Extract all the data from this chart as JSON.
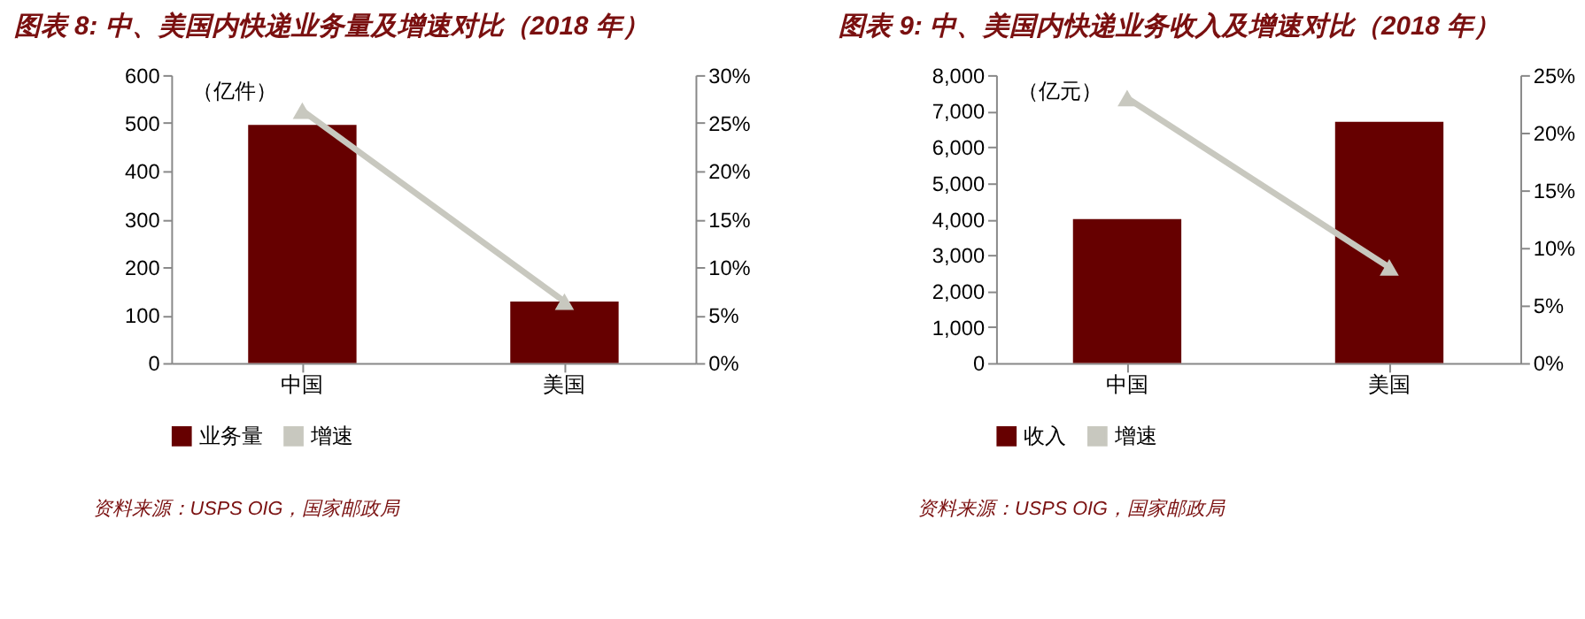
{
  "chart_data": [
    {
      "type": "bar",
      "title": "图表 8: 中、美国内快递业务量及增速对比（2018 年）",
      "ylabel": "（亿件）",
      "categories": [
        "中国",
        "美国"
      ],
      "series": [
        {
          "name": "业务量",
          "color": "#660000",
          "values": [
            496,
            128
          ]
        },
        {
          "name": "增速",
          "type": "line",
          "axis": "y2",
          "marker": "triangle",
          "color": "#c8c8bf",
          "values": [
            26.3,
            6.4
          ]
        }
      ],
      "ylim": [
        0,
        600
      ],
      "yticks": [
        0,
        100,
        200,
        300,
        400,
        500,
        600
      ],
      "y2lim": [
        0,
        30
      ],
      "y2ticks": [
        {
          "value": 0,
          "label": "0%"
        },
        {
          "value": 5,
          "label": "5%"
        },
        {
          "value": 10,
          "label": "10%"
        },
        {
          "value": 15,
          "label": "15%"
        },
        {
          "value": 20,
          "label": "20%"
        },
        {
          "value": 25,
          "label": "25%"
        },
        {
          "value": 30,
          "label": "30%"
        }
      ],
      "legend": "bottom",
      "grid": false,
      "annotations": [
        "资料来源：USPS OIG，国家邮政局"
      ]
    },
    {
      "type": "bar",
      "title": "图表 9: 中、美国内快递业务收入及增速对比（2018 年）",
      "ylabel": "（亿元）",
      "categories": [
        "中国",
        "美国"
      ],
      "series": [
        {
          "name": "收入",
          "color": "#660000",
          "values": [
            4000,
            6700
          ]
        },
        {
          "name": "增速",
          "type": "line",
          "axis": "y2",
          "marker": "triangle",
          "color": "#c8c8bf",
          "values": [
            23,
            8.3
          ]
        }
      ],
      "ylim": [
        0,
        8000
      ],
      "yticks": [
        {
          "value": 0,
          "label": "0"
        },
        {
          "value": 1000,
          "label": "1,000"
        },
        {
          "value": 2000,
          "label": "2,000"
        },
        {
          "value": 3000,
          "label": "3,000"
        },
        {
          "value": 4000,
          "label": "4,000"
        },
        {
          "value": 5000,
          "label": "5,000"
        },
        {
          "value": 6000,
          "label": "6,000"
        },
        {
          "value": 7000,
          "label": "7,000"
        },
        {
          "value": 8000,
          "label": "8,000"
        }
      ],
      "y2lim": [
        0,
        25
      ],
      "y2ticks": [
        {
          "value": 0,
          "label": "0%"
        },
        {
          "value": 5,
          "label": "5%"
        },
        {
          "value": 10,
          "label": "10%"
        },
        {
          "value": 15,
          "label": "15%"
        },
        {
          "value": 20,
          "label": "20%"
        },
        {
          "value": 25,
          "label": "25%"
        }
      ],
      "legend": "bottom",
      "grid": false,
      "annotations": [
        "资料来源：USPS OIG，国家邮政局"
      ]
    }
  ]
}
